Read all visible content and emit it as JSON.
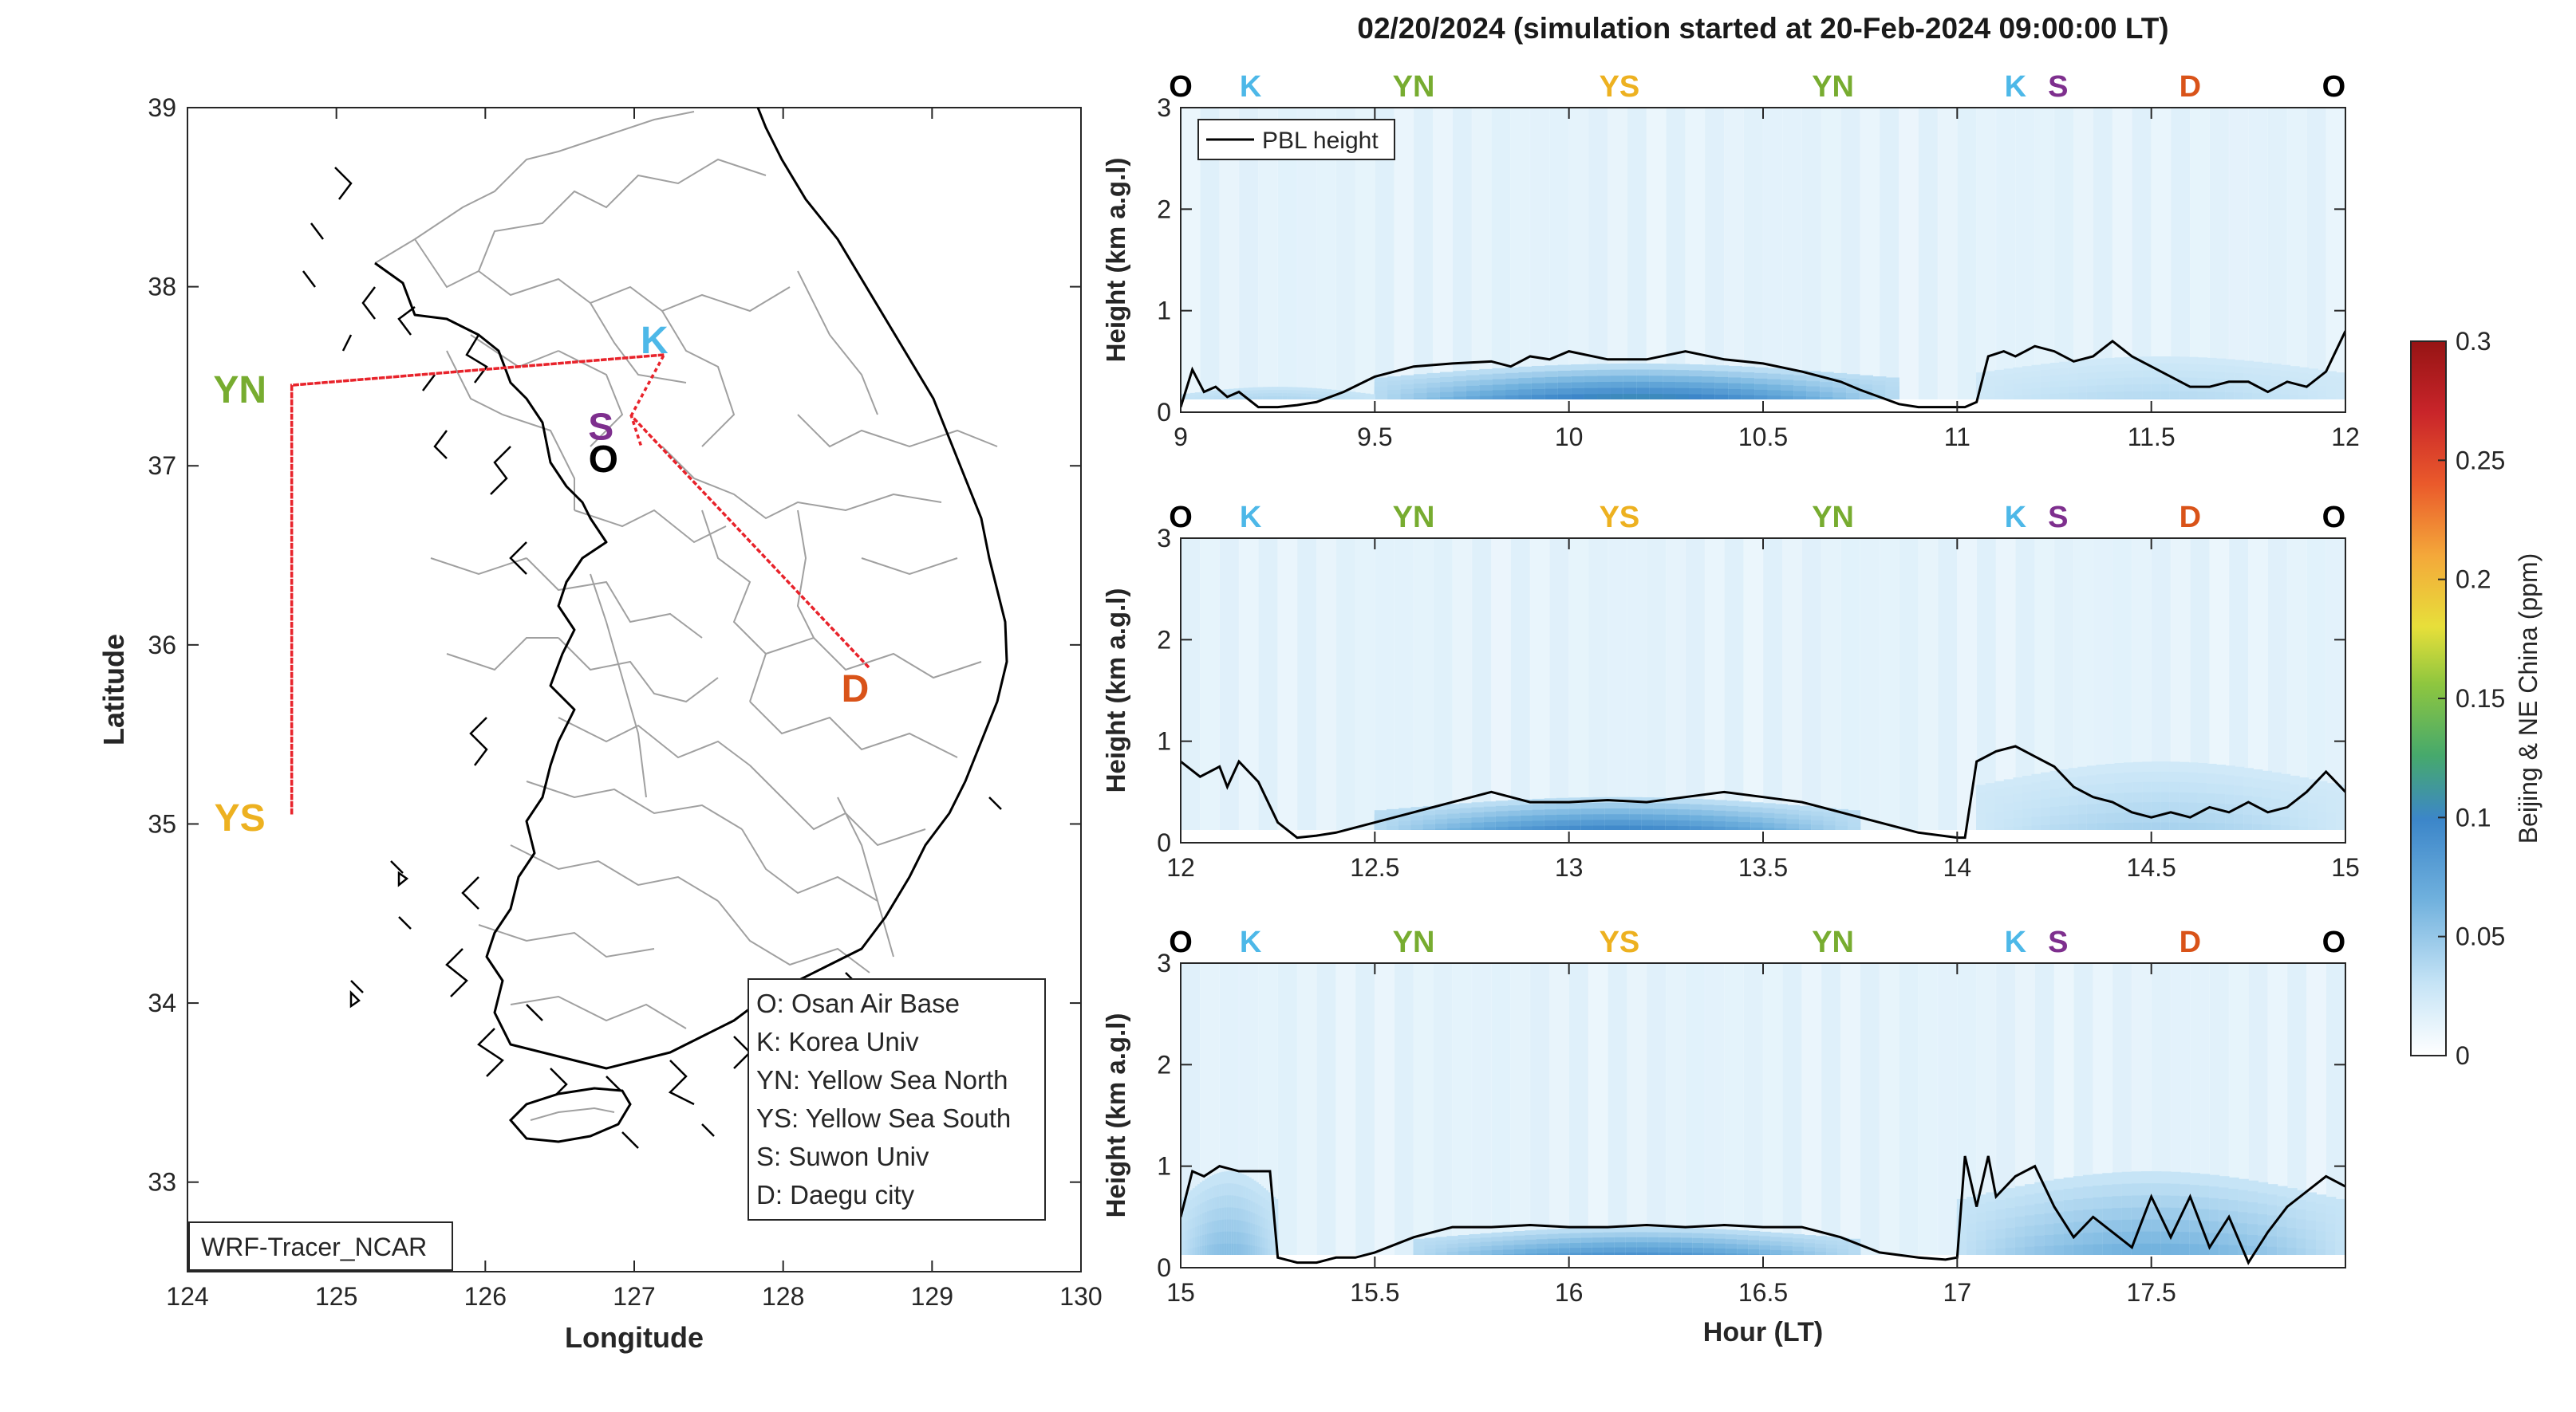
{
  "title": "02/20/2024 (simulation started at 20-Feb-2024 09:00:00 LT)",
  "colors": {
    "O": "#000000",
    "K": "#4db8e8",
    "S": "#7e2f8e",
    "YN": "#77ac30",
    "YS": "#edb120",
    "D": "#d95319",
    "route": "#e8232b",
    "pbl": "#000000"
  },
  "map": {
    "xlabel": "Longitude",
    "ylabel": "Latitude",
    "xlim": [
      124,
      130
    ],
    "ylim": [
      32.5,
      39
    ],
    "xticks": [
      "124",
      "125",
      "126",
      "127",
      "128",
      "129",
      "130"
    ],
    "yticks": [
      "33",
      "34",
      "35",
      "36",
      "37",
      "38",
      "39"
    ],
    "model_label": "WRF-Tracer_NCAR",
    "sites": [
      {
        "code": "YN",
        "lon": 124.7,
        "lat": 37.45
      },
      {
        "code": "YS",
        "lon": 124.7,
        "lat": 35.05
      },
      {
        "code": "K",
        "lon": 127.2,
        "lat": 37.62
      },
      {
        "code": "S",
        "lon": 126.98,
        "lat": 37.28
      },
      {
        "code": "O",
        "lon": 127.05,
        "lat": 37.1
      },
      {
        "code": "D",
        "lon": 128.58,
        "lat": 35.87
      }
    ],
    "route": [
      {
        "lon": 127.2,
        "lat": 37.62
      },
      {
        "lon": 124.7,
        "lat": 37.45
      },
      {
        "lon": 124.7,
        "lat": 35.05
      },
      {
        "lon": 124.7,
        "lat": 37.45
      },
      {
        "lon": 127.2,
        "lat": 37.62
      },
      {
        "lon": 126.98,
        "lat": 37.28
      },
      {
        "lon": 128.58,
        "lat": 35.87
      },
      {
        "lon": 126.98,
        "lat": 37.28
      },
      {
        "lon": 127.05,
        "lat": 37.1
      }
    ],
    "legend": [
      "O: Osan Air Base",
      "K: Korea Univ",
      "YN: Yellow Sea North",
      "YS: Yellow Sea South",
      "S: Suwon Univ",
      "D: Daegu city"
    ]
  },
  "chart_data": [
    {
      "type": "heatmap",
      "xlim": [
        9,
        12
      ],
      "ylim": [
        0,
        3
      ],
      "ylabel": "Height (km a.g.l)",
      "xticks": [
        "9",
        "9.5",
        "10",
        "10.5",
        "11",
        "11.5",
        "12"
      ],
      "yticks": [
        "0",
        "1",
        "2",
        "3"
      ],
      "sites": [
        {
          "code": "O",
          "x": 9.0
        },
        {
          "code": "K",
          "x": 9.18
        },
        {
          "code": "YN",
          "x": 9.6
        },
        {
          "code": "YS",
          "x": 10.13
        },
        {
          "code": "YN",
          "x": 10.68
        },
        {
          "code": "K",
          "x": 11.15
        },
        {
          "code": "S",
          "x": 11.26
        },
        {
          "code": "D",
          "x": 11.6
        },
        {
          "code": "O",
          "x": 11.97
        }
      ],
      "legend": "PBL height",
      "pbl": {
        "x": [
          9.0,
          9.03,
          9.06,
          9.09,
          9.12,
          9.15,
          9.2,
          9.25,
          9.3,
          9.35,
          9.42,
          9.5,
          9.6,
          9.7,
          9.8,
          9.85,
          9.9,
          9.95,
          10.0,
          10.1,
          10.2,
          10.3,
          10.4,
          10.5,
          10.6,
          10.7,
          10.75,
          10.8,
          10.85,
          10.9,
          10.95,
          11.0,
          11.02,
          11.05,
          11.08,
          11.12,
          11.15,
          11.2,
          11.25,
          11.3,
          11.35,
          11.4,
          11.45,
          11.5,
          11.55,
          11.6,
          11.65,
          11.7,
          11.75,
          11.8,
          11.85,
          11.9,
          11.95,
          12.0
        ],
        "y": [
          0.05,
          0.42,
          0.2,
          0.25,
          0.15,
          0.2,
          0.05,
          0.05,
          0.07,
          0.1,
          0.2,
          0.35,
          0.45,
          0.48,
          0.5,
          0.45,
          0.55,
          0.52,
          0.6,
          0.52,
          0.52,
          0.6,
          0.52,
          0.48,
          0.4,
          0.3,
          0.22,
          0.15,
          0.08,
          0.05,
          0.05,
          0.05,
          0.05,
          0.1,
          0.55,
          0.6,
          0.55,
          0.65,
          0.6,
          0.5,
          0.55,
          0.7,
          0.55,
          0.45,
          0.35,
          0.25,
          0.25,
          0.3,
          0.3,
          0.2,
          0.3,
          0.25,
          0.4,
          0.8
        ]
      },
      "tracer": [
        {
          "x0": 9.5,
          "x1": 10.85,
          "h": 0.48,
          "peak": 0.13,
          "base": 0.035
        },
        {
          "x0": 9.0,
          "x1": 9.5,
          "h": 0.25,
          "peak": 0.05,
          "base": 0.03
        },
        {
          "x0": 11.05,
          "x1": 12.0,
          "h": 0.55,
          "peak": 0.04,
          "base": 0.025
        }
      ]
    },
    {
      "type": "heatmap",
      "xlim": [
        12,
        15
      ],
      "ylim": [
        0,
        3
      ],
      "ylabel": "Height (km a.g.l)",
      "xticks": [
        "12",
        "12.5",
        "13",
        "13.5",
        "14",
        "14.5",
        "15"
      ],
      "yticks": [
        "0",
        "1",
        "2",
        "3"
      ],
      "sites": [
        {
          "code": "O",
          "x": 12.0
        },
        {
          "code": "K",
          "x": 12.18
        },
        {
          "code": "YN",
          "x": 12.6
        },
        {
          "code": "YS",
          "x": 13.13
        },
        {
          "code": "YN",
          "x": 13.68
        },
        {
          "code": "K",
          "x": 14.15
        },
        {
          "code": "S",
          "x": 14.26
        },
        {
          "code": "D",
          "x": 14.6
        },
        {
          "code": "O",
          "x": 14.97
        }
      ],
      "legend": "",
      "pbl": {
        "x": [
          12.0,
          12.05,
          12.1,
          12.12,
          12.15,
          12.2,
          12.25,
          12.3,
          12.35,
          12.4,
          12.45,
          12.5,
          12.6,
          12.7,
          12.8,
          12.85,
          12.9,
          13.0,
          13.1,
          13.2,
          13.3,
          13.4,
          13.5,
          13.6,
          13.7,
          13.8,
          13.9,
          14.0,
          14.02,
          14.05,
          14.1,
          14.15,
          14.2,
          14.25,
          14.3,
          14.35,
          14.4,
          14.45,
          14.5,
          14.55,
          14.6,
          14.65,
          14.7,
          14.75,
          14.8,
          14.85,
          14.9,
          14.95,
          15.0
        ],
        "y": [
          0.8,
          0.65,
          0.75,
          0.55,
          0.8,
          0.6,
          0.2,
          0.05,
          0.07,
          0.1,
          0.15,
          0.2,
          0.3,
          0.4,
          0.5,
          0.45,
          0.4,
          0.4,
          0.42,
          0.4,
          0.45,
          0.5,
          0.45,
          0.4,
          0.3,
          0.2,
          0.1,
          0.05,
          0.05,
          0.8,
          0.9,
          0.95,
          0.85,
          0.75,
          0.55,
          0.45,
          0.4,
          0.3,
          0.25,
          0.3,
          0.25,
          0.35,
          0.3,
          0.4,
          0.3,
          0.35,
          0.5,
          0.7,
          0.5
        ]
      },
      "tracer": [
        {
          "x0": 12.5,
          "x1": 13.75,
          "h": 0.45,
          "peak": 0.12,
          "base": 0.035
        },
        {
          "x0": 14.05,
          "x1": 15.0,
          "h": 0.8,
          "peak": 0.045,
          "base": 0.025
        }
      ]
    },
    {
      "type": "heatmap",
      "xlim": [
        15,
        18
      ],
      "ylim": [
        0,
        3
      ],
      "ylabel": "Height (km a.g.l)",
      "xlabel": "Hour (LT)",
      "xticks": [
        "15",
        "15.5",
        "16",
        "16.5",
        "17",
        "17.5"
      ],
      "yticks": [
        "0",
        "1",
        "2",
        "3"
      ],
      "sites": [
        {
          "code": "O",
          "x": 15.0
        },
        {
          "code": "K",
          "x": 15.18
        },
        {
          "code": "YN",
          "x": 15.6
        },
        {
          "code": "YS",
          "x": 16.13
        },
        {
          "code": "YN",
          "x": 16.68
        },
        {
          "code": "K",
          "x": 17.15
        },
        {
          "code": "S",
          "x": 17.26
        },
        {
          "code": "D",
          "x": 17.6
        },
        {
          "code": "O",
          "x": 17.97
        }
      ],
      "legend": "",
      "pbl": {
        "x": [
          15.0,
          15.03,
          15.06,
          15.1,
          15.15,
          15.2,
          15.23,
          15.25,
          15.3,
          15.35,
          15.4,
          15.45,
          15.5,
          15.6,
          15.7,
          15.8,
          15.9,
          16.0,
          16.1,
          16.2,
          16.3,
          16.4,
          16.5,
          16.6,
          16.7,
          16.8,
          16.9,
          16.97,
          17.0,
          17.02,
          17.05,
          17.08,
          17.1,
          17.15,
          17.2,
          17.25,
          17.3,
          17.35,
          17.4,
          17.45,
          17.5,
          17.55,
          17.6,
          17.65,
          17.7,
          17.75,
          17.8,
          17.85,
          17.9,
          17.95,
          18.0
        ],
        "y": [
          0.5,
          0.95,
          0.9,
          1.0,
          0.95,
          0.95,
          0.95,
          0.1,
          0.05,
          0.05,
          0.1,
          0.1,
          0.15,
          0.3,
          0.4,
          0.4,
          0.42,
          0.4,
          0.4,
          0.42,
          0.4,
          0.42,
          0.4,
          0.4,
          0.3,
          0.15,
          0.1,
          0.08,
          0.1,
          1.1,
          0.6,
          1.1,
          0.7,
          0.9,
          1.0,
          0.6,
          0.3,
          0.5,
          0.35,
          0.2,
          0.7,
          0.3,
          0.7,
          0.2,
          0.5,
          0.05,
          0.35,
          0.6,
          0.75,
          0.9,
          0.8
        ]
      },
      "tracer": [
        {
          "x0": 15.0,
          "x1": 15.25,
          "h": 0.95,
          "peak": 0.06,
          "base": 0.03
        },
        {
          "x0": 15.6,
          "x1": 16.75,
          "h": 0.4,
          "peak": 0.11,
          "base": 0.035
        },
        {
          "x0": 17.0,
          "x1": 18.0,
          "h": 0.95,
          "peak": 0.07,
          "base": 0.03
        }
      ]
    }
  ],
  "colorbar": {
    "label": "Beijing & NE China (ppm)",
    "range": [
      0,
      0.3
    ],
    "ticks": [
      "0",
      "0.05",
      "0.1",
      "0.15",
      "0.2",
      "0.25",
      "0.3"
    ]
  }
}
